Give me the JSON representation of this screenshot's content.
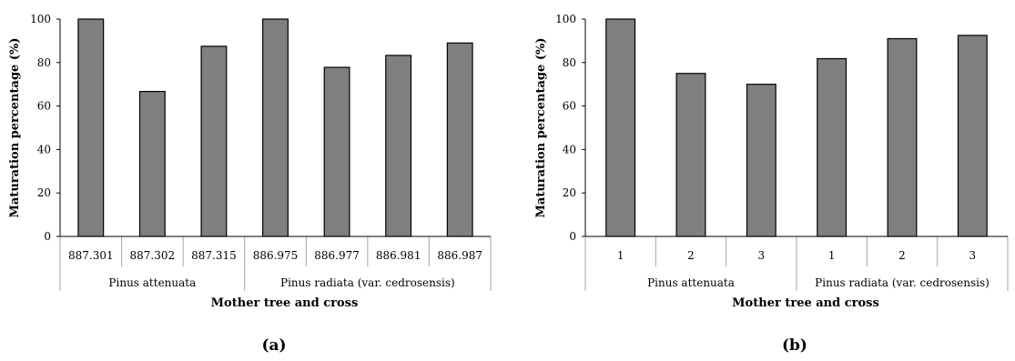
{
  "chart_data": [
    {
      "type": "bar",
      "panel_label": "(a)",
      "ylabel": "Maturation percentage (%)",
      "xlabel": "Mother tree and cross",
      "ylim": [
        0,
        100
      ],
      "yticks": [
        "0",
        "20",
        "40",
        "60",
        "80",
        "100"
      ],
      "grid": false,
      "groups": [
        {
          "label": "Pinus attenuata",
          "categories": [
            "887.301",
            "887.302",
            "887.315"
          ],
          "values": [
            100,
            66.7,
            87.5
          ]
        },
        {
          "label": "Pinus radiata (var. cedrosensis)",
          "categories": [
            "886.975",
            "886.977",
            "886.981",
            "886.987"
          ],
          "values": [
            100,
            77.8,
            83.3,
            89
          ]
        }
      ],
      "bar_color": "#7f7f7f"
    },
    {
      "type": "bar",
      "panel_label": "(b)",
      "ylabel": "Maturation percentage (%)",
      "xlabel": "Mother tree and cross",
      "ylim": [
        0,
        100
      ],
      "yticks": [
        "0",
        "20",
        "40",
        "60",
        "80",
        "100"
      ],
      "grid": false,
      "groups": [
        {
          "label": "Pinus attenuata",
          "categories": [
            "1",
            "2",
            "3"
          ],
          "values": [
            100,
            75,
            70
          ]
        },
        {
          "label": "Pinus radiata (var. cedrosensis)",
          "categories": [
            "1",
            "2",
            "3"
          ],
          "values": [
            81.8,
            91,
            92.5
          ]
        }
      ],
      "bar_color": "#7f7f7f"
    }
  ]
}
